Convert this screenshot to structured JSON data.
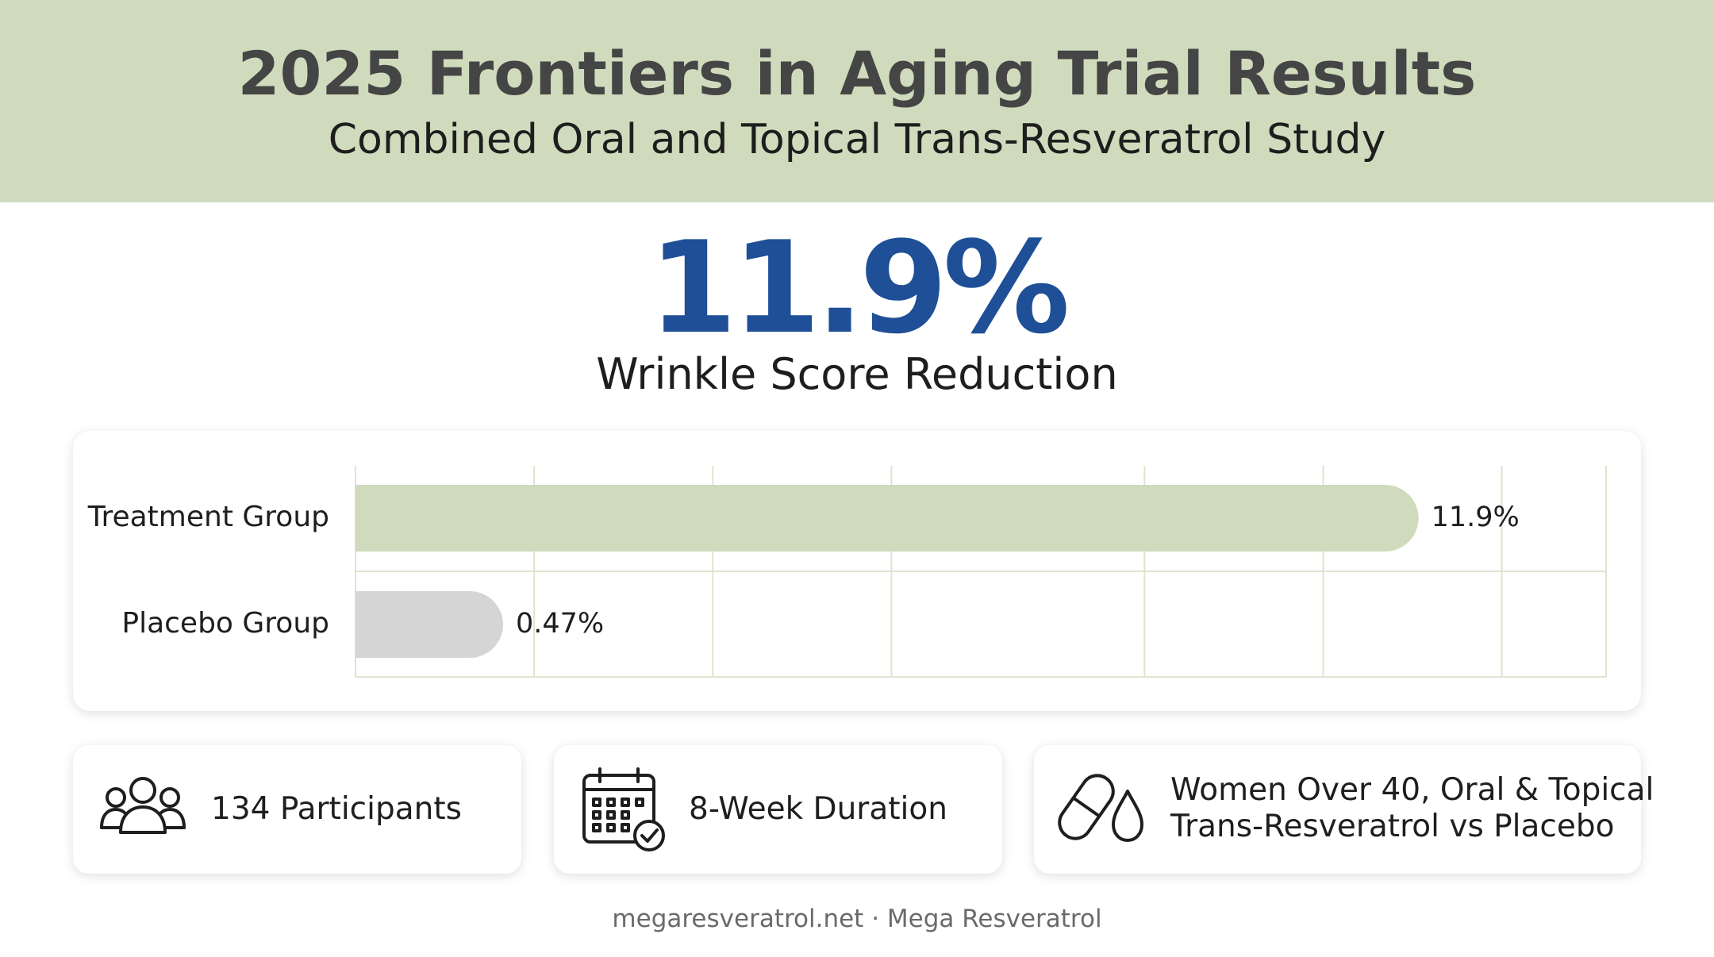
{
  "header": {
    "title": "2025 Frontiers in Aging Trial Results",
    "subtitle": "Combined Oral and Topical Trans-Resveratrol Study"
  },
  "headline": {
    "value": "11.9%",
    "label": "Wrinkle Score Reduction"
  },
  "chart_data": {
    "type": "bar",
    "orientation": "horizontal",
    "categories": [
      "Treatment Group",
      "Placebo Group"
    ],
    "values": [
      11.9,
      0.47
    ],
    "value_labels": [
      "11.9%",
      "0.47%"
    ],
    "xlim": [
      0,
      14
    ],
    "grid": true,
    "colors": [
      "#d0dbbd",
      "#d5d5d5"
    ],
    "grid_color": "#dfe4cf"
  },
  "info_cards": [
    {
      "icon": "people-icon",
      "text_lines": [
        "134 Participants"
      ]
    },
    {
      "icon": "calendar-check-icon",
      "text_lines": [
        "8-Week Duration"
      ]
    },
    {
      "icon": "capsule-drop-icon",
      "text_lines": [
        "Women Over 40, Oral & Topical",
        "Trans-Resveratrol vs Placebo"
      ]
    }
  ],
  "footer": "megaresveratrol.net · Mega Resveratrol",
  "colors": {
    "header_bg": "#d0dbbd",
    "accent": "#1e4f97",
    "title_text": "#454545"
  }
}
